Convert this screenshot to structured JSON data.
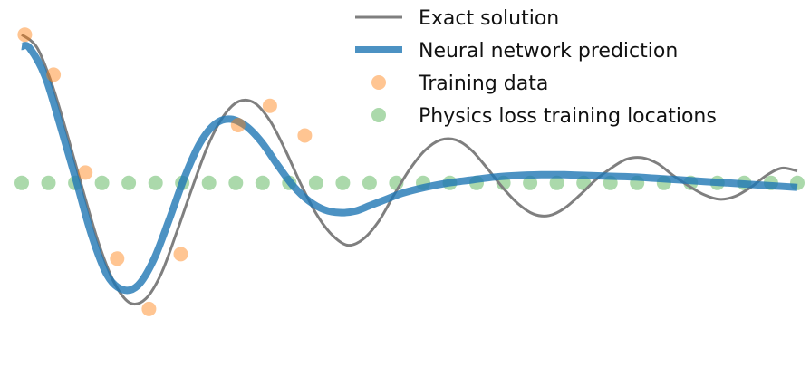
{
  "chart_data": {
    "type": "line",
    "title": "",
    "xlabel": "",
    "ylabel": "",
    "xlim": [
      0,
      1
    ],
    "ylim": [
      -1.15,
      1.05
    ],
    "grid": false,
    "axes_visible": false,
    "legend_placement": "top-right",
    "series": [
      {
        "name": "Exact solution",
        "kind": "line",
        "color": "#7f7f7f",
        "x": [
          0,
          0.02,
          0.04,
          0.06,
          0.08,
          0.1,
          0.12,
          0.14,
          0.16,
          0.18,
          0.2,
          0.22,
          0.24,
          0.26,
          0.28,
          0.3,
          0.32,
          0.34,
          0.36,
          0.38,
          0.4,
          0.42,
          0.44,
          0.46,
          0.48,
          0.5,
          0.52,
          0.54,
          0.56,
          0.58,
          0.6,
          0.62,
          0.64,
          0.66,
          0.68,
          0.7,
          0.72,
          0.74,
          0.76,
          0.78,
          0.8,
          0.82,
          0.84,
          0.86,
          0.88,
          0.9,
          0.92,
          0.94,
          0.96,
          0.98,
          1.0
        ],
        "y": [
          1.0,
          0.91,
          0.65,
          0.3,
          -0.07,
          -0.42,
          -0.68,
          -0.81,
          -0.78,
          -0.61,
          -0.33,
          -0.03,
          0.25,
          0.45,
          0.55,
          0.54,
          0.42,
          0.22,
          -0.01,
          -0.21,
          -0.35,
          -0.42,
          -0.38,
          -0.26,
          -0.08,
          0.09,
          0.22,
          0.29,
          0.29,
          0.22,
          0.1,
          -0.03,
          -0.14,
          -0.21,
          -0.22,
          -0.17,
          -0.08,
          0.02,
          0.1,
          0.16,
          0.17,
          0.13,
          0.05,
          -0.02,
          -0.08,
          -0.11,
          -0.09,
          -0.03,
          0.05,
          0.1,
          0.08
        ]
      },
      {
        "name": "Neural network prediction",
        "kind": "line",
        "color": "#1f77b4",
        "x": [
          0,
          0.01,
          0.03,
          0.05,
          0.07,
          0.09,
          0.11,
          0.13,
          0.15,
          0.17,
          0.19,
          0.21,
          0.23,
          0.25,
          0.27,
          0.29,
          0.31,
          0.33,
          0.35,
          0.37,
          0.39,
          0.41,
          0.43,
          0.45,
          0.47,
          0.49,
          0.52,
          0.55,
          0.58,
          0.61,
          0.64,
          0.67,
          0.7,
          0.73,
          0.76,
          0.79,
          0.82,
          0.85,
          0.88,
          0.91,
          0.94,
          0.97,
          1.0
        ],
        "y": [
          0.92,
          0.91,
          0.72,
          0.38,
          0.02,
          -0.35,
          -0.62,
          -0.72,
          -0.69,
          -0.52,
          -0.25,
          0.04,
          0.27,
          0.4,
          0.43,
          0.38,
          0.27,
          0.12,
          -0.02,
          -0.12,
          -0.18,
          -0.2,
          -0.19,
          -0.15,
          -0.11,
          -0.07,
          -0.03,
          0.0,
          0.02,
          0.04,
          0.05,
          0.055,
          0.055,
          0.05,
          0.045,
          0.04,
          0.03,
          0.02,
          0.01,
          0.0,
          -0.01,
          -0.02,
          -0.03
        ]
      },
      {
        "name": "Training data",
        "kind": "scatter",
        "color": "#ff7f0e",
        "x": [
          0.004,
          0.041,
          0.082,
          0.123,
          0.164,
          0.205,
          0.279,
          0.32,
          0.365
        ],
        "y": [
          1.0,
          0.73,
          0.07,
          -0.51,
          -0.85,
          -0.48,
          0.39,
          0.52,
          0.32
        ]
      },
      {
        "name": "Physics loss training locations",
        "kind": "scatter",
        "color": "#2ca02c",
        "x": [
          0.0,
          0.0345,
          0.069,
          0.1035,
          0.138,
          0.1725,
          0.207,
          0.2415,
          0.276,
          0.3105,
          0.345,
          0.3795,
          0.414,
          0.4485,
          0.483,
          0.5175,
          0.552,
          0.5865,
          0.621,
          0.6555,
          0.69,
          0.7245,
          0.759,
          0.7935,
          0.828,
          0.8625,
          0.897,
          0.9315,
          0.966,
          1.0
        ],
        "y": [
          0,
          0,
          0,
          0,
          0,
          0,
          0,
          0,
          0,
          0,
          0,
          0,
          0,
          0,
          0,
          0,
          0,
          0,
          0,
          0,
          0,
          0,
          0,
          0,
          0,
          0,
          0,
          0,
          0,
          0
        ]
      }
    ]
  }
}
